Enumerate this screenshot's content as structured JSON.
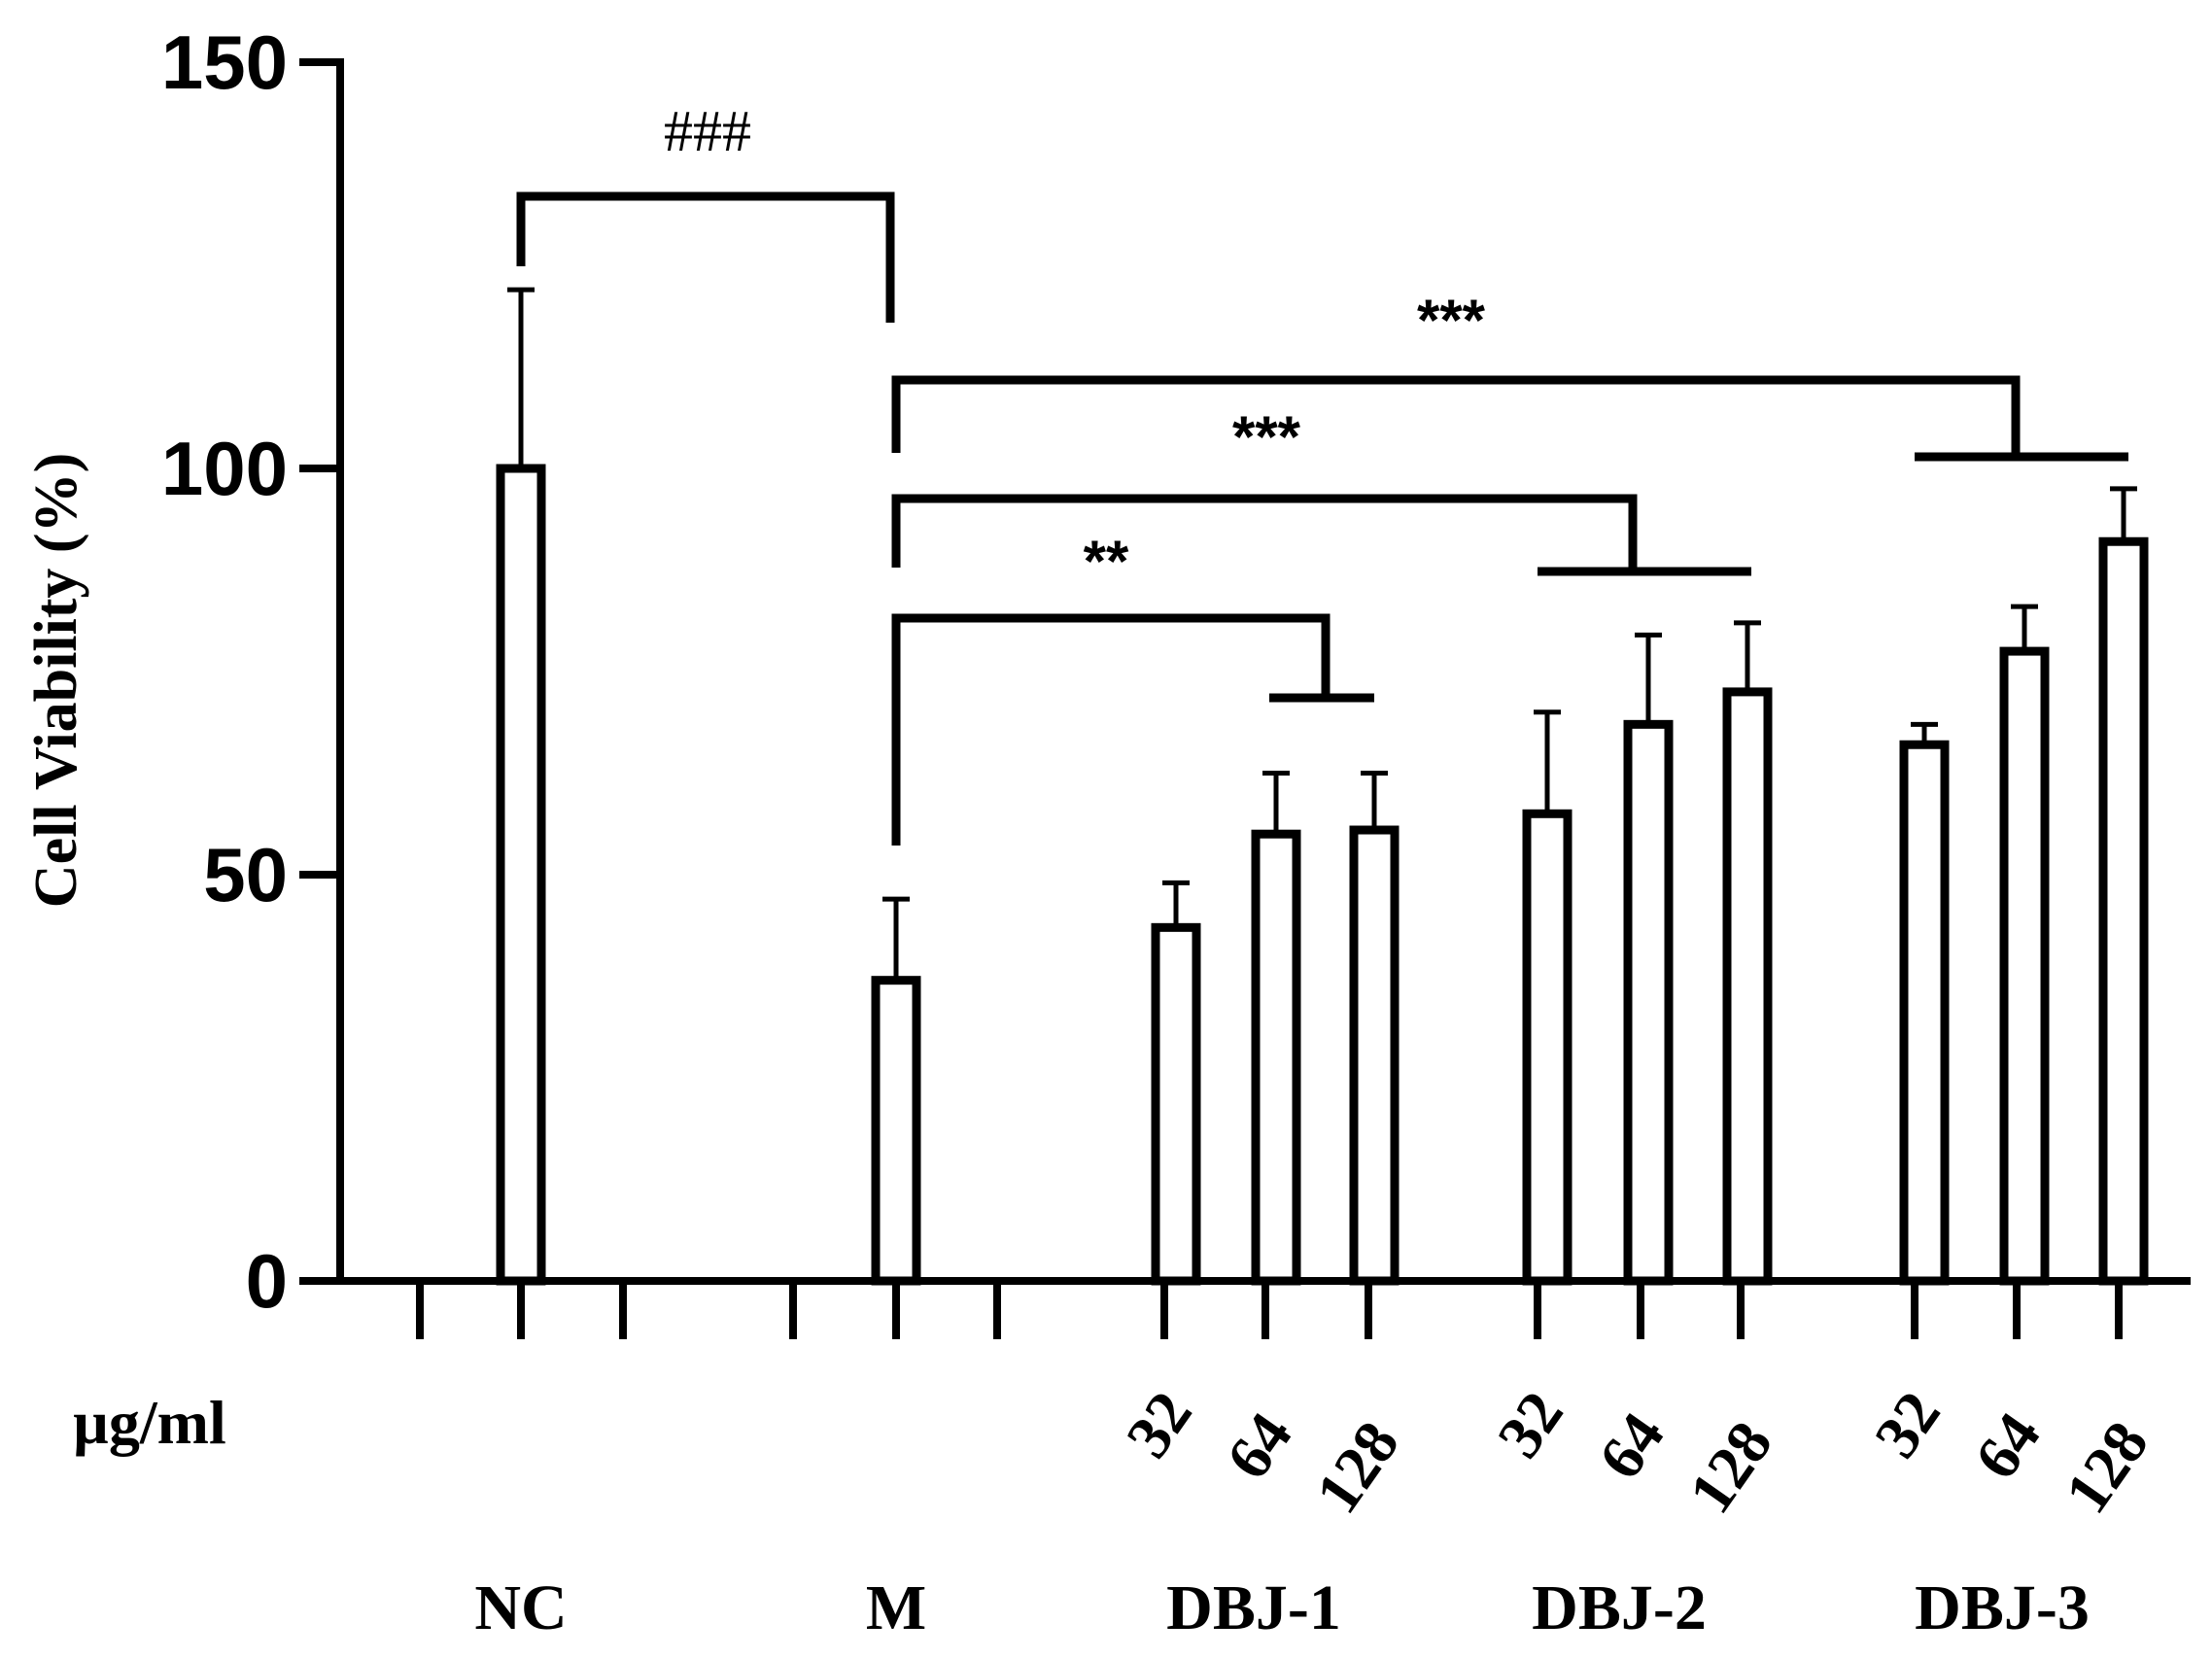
{
  "chart_data": {
    "type": "bar",
    "ylabel": "Cell Viability (%)",
    "ylim": [
      0,
      150
    ],
    "yticks": [
      0,
      50,
      100,
      150
    ],
    "grid": false,
    "unit_label": "µg/ml",
    "groups": [
      "NC",
      "M",
      "DBJ-1",
      "DBJ-2",
      "DBJ-3"
    ],
    "categories": [
      "NC",
      "M",
      "DBJ-1 32",
      "DBJ-1 64",
      "DBJ-1 128",
      "DBJ-2 32",
      "DBJ-2 64",
      "DBJ-2 128",
      "DBJ-3 32",
      "DBJ-3 64",
      "DBJ-3 128"
    ],
    "concentrations": [
      "",
      "",
      "32",
      "64",
      "128",
      "32",
      "64",
      "128",
      "32",
      "64",
      "128"
    ],
    "values": [
      100,
      37,
      43.5,
      55,
      55.5,
      57.5,
      68.5,
      72.5,
      66,
      77.5,
      91
    ],
    "errors": [
      22,
      10,
      5.5,
      7.5,
      7,
      12.5,
      11,
      8.5,
      2.5,
      5.5,
      6.5
    ],
    "annotations": [
      {
        "label": "###",
        "comparison": "NC vs M"
      },
      {
        "label": "**",
        "comparison": "M vs DBJ-1"
      },
      {
        "label": "***",
        "comparison": "M vs DBJ-2"
      },
      {
        "label": "***",
        "comparison": "M vs DBJ-3"
      }
    ]
  }
}
